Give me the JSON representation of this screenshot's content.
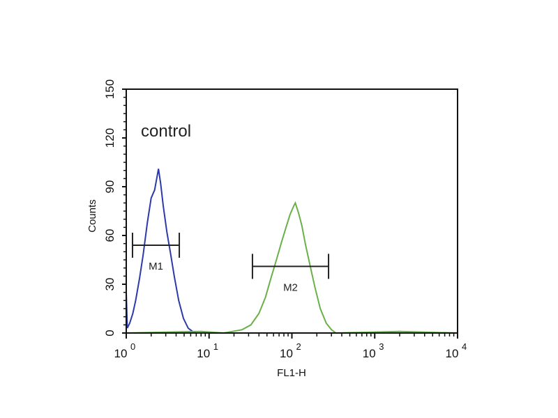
{
  "chart_data": {
    "type": "line",
    "annotation": "control",
    "xlabel": "FL1-H",
    "ylabel": "Counts",
    "xscale": "log",
    "xlim": [
      1,
      10000
    ],
    "ylim": [
      0,
      150
    ],
    "x_ticks": [
      {
        "base": "10",
        "exp": "0",
        "value": 1
      },
      {
        "base": "10",
        "exp": "1",
        "value": 10
      },
      {
        "base": "10",
        "exp": "2",
        "value": 100
      },
      {
        "base": "10",
        "exp": "3",
        "value": 1000
      },
      {
        "base": "10",
        "exp": "4",
        "value": 10000
      }
    ],
    "y_ticks": [
      "0",
      "30",
      "60",
      "90",
      "120",
      "150"
    ],
    "grid": false,
    "series": [
      {
        "color": "#2b3aa8",
        "points": [
          [
            1.0,
            25
          ],
          [
            1.03,
            3
          ],
          [
            1.1,
            6
          ],
          [
            1.2,
            12
          ],
          [
            1.3,
            20
          ],
          [
            1.45,
            34
          ],
          [
            1.6,
            48
          ],
          [
            1.8,
            68
          ],
          [
            2.0,
            83
          ],
          [
            2.2,
            88
          ],
          [
            2.35,
            96
          ],
          [
            2.45,
            101
          ],
          [
            2.6,
            92
          ],
          [
            2.8,
            78
          ],
          [
            3.1,
            62
          ],
          [
            3.4,
            50
          ],
          [
            3.8,
            35
          ],
          [
            4.3,
            20
          ],
          [
            4.9,
            9
          ],
          [
            5.6,
            3
          ],
          [
            6.3,
            1
          ],
          [
            7,
            0
          ],
          [
            10000,
            0
          ]
        ]
      },
      {
        "color": "#6ab04a",
        "points": [
          [
            1,
            0
          ],
          [
            8,
            1
          ],
          [
            15,
            0
          ],
          [
            25,
            2
          ],
          [
            32,
            5
          ],
          [
            40,
            12
          ],
          [
            48,
            22
          ],
          [
            56,
            34
          ],
          [
            65,
            45
          ],
          [
            75,
            56
          ],
          [
            85,
            65
          ],
          [
            95,
            73
          ],
          [
            105,
            78
          ],
          [
            110,
            80
          ],
          [
            120,
            74
          ],
          [
            132,
            66
          ],
          [
            145,
            55
          ],
          [
            165,
            42
          ],
          [
            190,
            28
          ],
          [
            220,
            15
          ],
          [
            260,
            6
          ],
          [
            300,
            2
          ],
          [
            340,
            0
          ],
          [
            2000,
            1
          ],
          [
            10000,
            0
          ]
        ]
      }
    ],
    "markers": [
      {
        "label": "M1",
        "x_range": [
          1.19,
          4.37
        ],
        "y": 54
      },
      {
        "label": "M2",
        "x_range": [
          33.4,
          277
        ],
        "y": 41
      }
    ]
  }
}
